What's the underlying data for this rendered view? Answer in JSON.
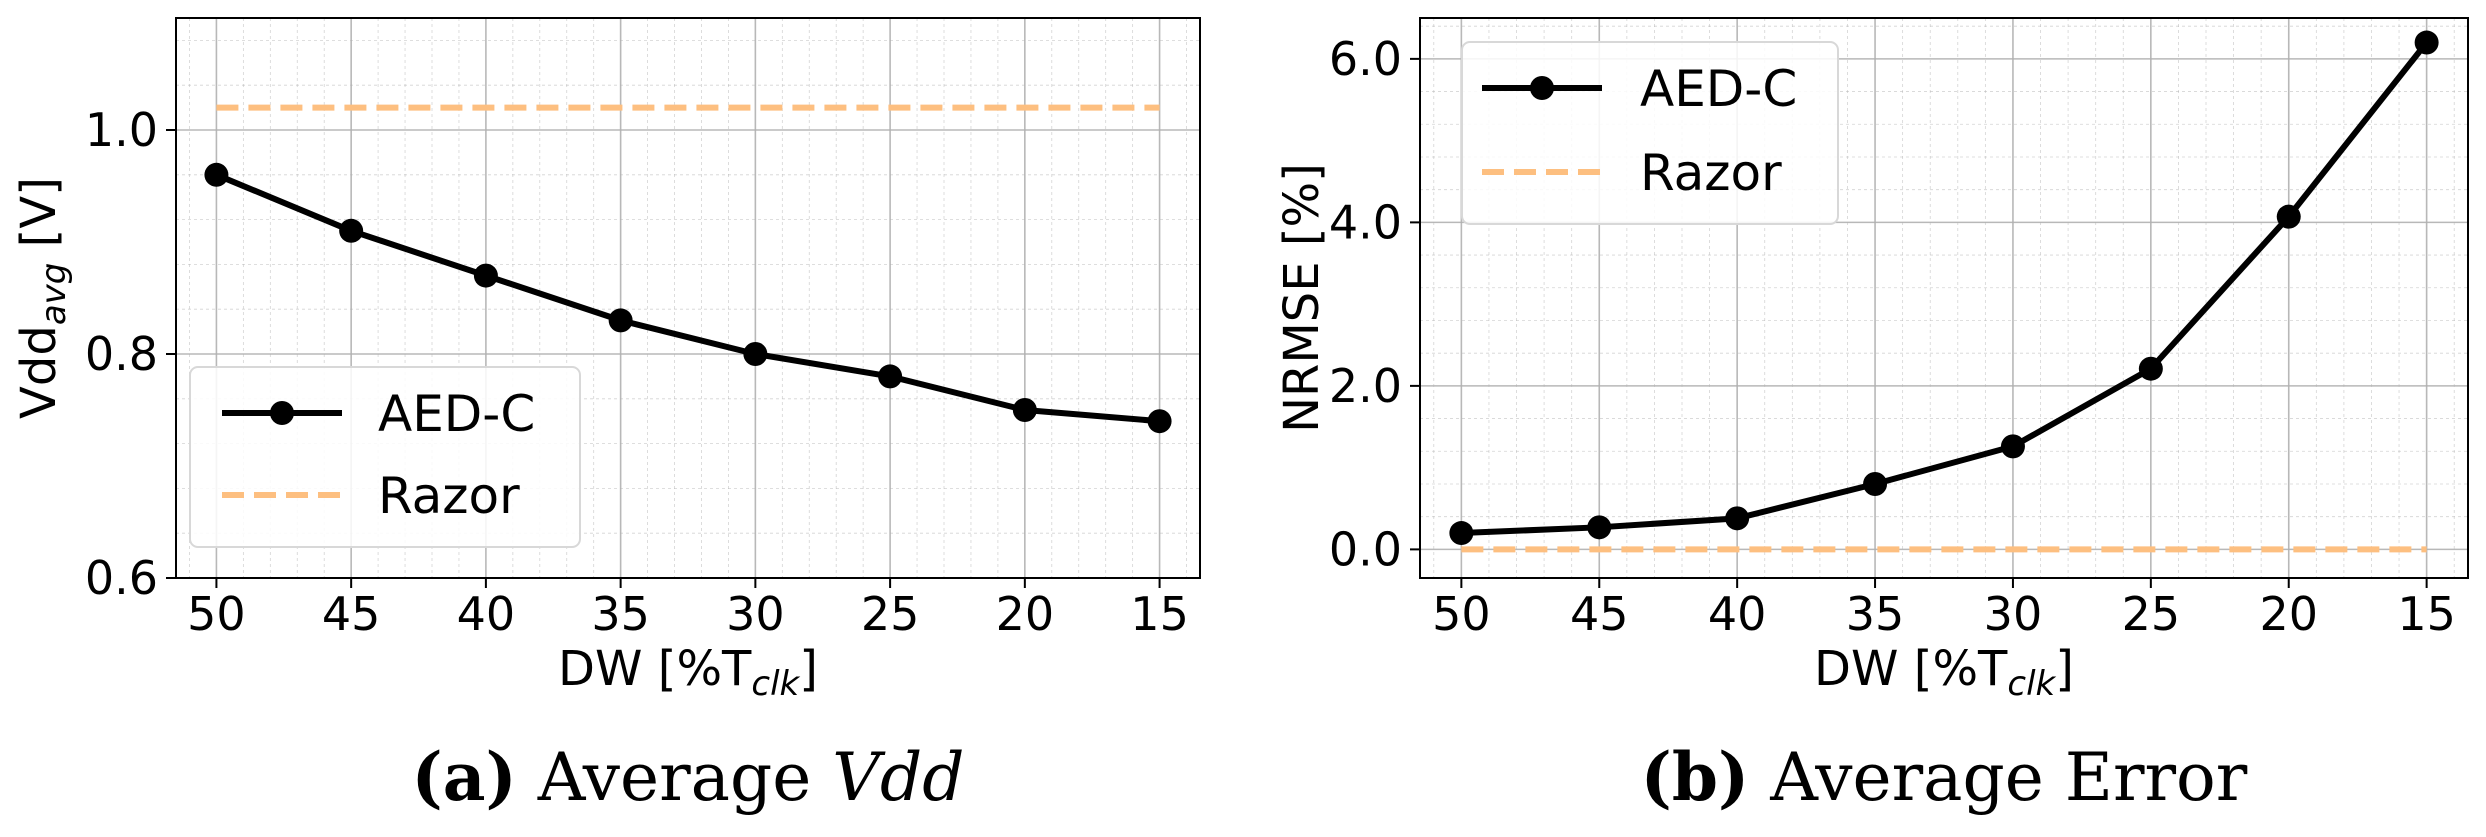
{
  "colors": {
    "aed": "#000000",
    "razor": "#fdbf80",
    "grid": "#b0b0b0"
  },
  "chart_data": [
    {
      "type": "line",
      "x": [
        50,
        45,
        40,
        35,
        30,
        25,
        20,
        15
      ],
      "xticks": [
        "50",
        "45",
        "40",
        "35",
        "30",
        "25",
        "20",
        "15"
      ],
      "xlim": [
        51.5,
        13.5
      ],
      "ylim": [
        0.6,
        1.1
      ],
      "yticks": [
        0.6,
        0.8,
        1.0
      ],
      "ytick_labels": [
        "0.6",
        "0.8",
        "1.0"
      ],
      "xlabel": {
        "main": "DW [%T",
        "sub": "clk",
        "close": "]"
      },
      "ylabel": {
        "main": "Vdd",
        "sub": "avg",
        "close": " [V]"
      },
      "series": [
        {
          "name": "AED-C",
          "style": "solid-marker",
          "values": [
            0.96,
            0.91,
            0.87,
            0.83,
            0.8,
            0.78,
            0.75,
            0.74
          ]
        },
        {
          "name": "Razor",
          "style": "dashed",
          "values": [
            1.02,
            1.02,
            1.02,
            1.02,
            1.02,
            1.02,
            1.02,
            1.02
          ]
        }
      ],
      "legend": "lower-left",
      "grid": true,
      "caption": {
        "label": "(a)",
        "text": " Average ",
        "symbol": "Vdd"
      }
    },
    {
      "type": "line",
      "x": [
        50,
        45,
        40,
        35,
        30,
        25,
        20,
        15
      ],
      "xticks": [
        "50",
        "45",
        "40",
        "35",
        "30",
        "25",
        "20",
        "15"
      ],
      "xlim": [
        51.5,
        13.5
      ],
      "ylim": [
        -0.35,
        6.5
      ],
      "yticks": [
        0.0,
        2.0,
        4.0,
        6.0
      ],
      "ytick_labels": [
        "0.0",
        "2.0",
        "4.0",
        "6.0"
      ],
      "xlabel": {
        "main": "DW [%T",
        "sub": "clk",
        "close": "]"
      },
      "ylabel": {
        "main": "NRMSE [%]",
        "sub": "",
        "close": ""
      },
      "series": [
        {
          "name": "AED-C",
          "style": "solid-marker",
          "values": [
            0.2,
            0.27,
            0.38,
            0.8,
            1.26,
            2.21,
            4.07,
            6.2
          ]
        },
        {
          "name": "Razor",
          "style": "dashed",
          "values": [
            0.0,
            0.0,
            0.0,
            0.0,
            0.0,
            0.0,
            0.0,
            0.0
          ]
        }
      ],
      "legend": "upper-left",
      "grid": true,
      "caption": {
        "label": "(b)",
        "text": " Average Error",
        "symbol": ""
      }
    }
  ]
}
